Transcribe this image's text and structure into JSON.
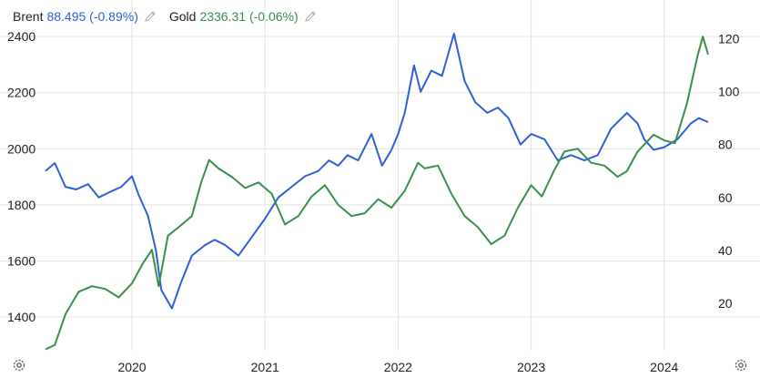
{
  "legend": [
    {
      "name": "Brent",
      "value": "88.495 (-0.89%)",
      "color": "#2f5fd8",
      "icon": "pencil-icon"
    },
    {
      "name": "Gold",
      "value": "2336.31 (-0.06%)",
      "color": "#3a8f4e",
      "icon": "pencil-icon"
    }
  ],
  "settings_icons": [
    "gear-icon",
    "gear-icon"
  ],
  "chart_data": {
    "type": "line",
    "grid": true,
    "x_ticks": [
      "2020",
      "2021",
      "2022",
      "2023",
      "2024"
    ],
    "x_range": [
      2019.35,
      2024.33
    ],
    "y_left": {
      "ticks": [
        1400,
        1600,
        1800,
        2000,
        2200,
        2400
      ],
      "range": [
        1280,
        2420
      ],
      "series": "Gold"
    },
    "y_right": {
      "ticks": [
        20,
        40,
        60,
        80,
        100,
        120
      ],
      "range": [
        2,
        123
      ],
      "series": "Brent"
    },
    "series": [
      {
        "name": "Brent",
        "axis": "right",
        "color": "#2f5fd8",
        "points": [
          [
            2019.35,
            70
          ],
          [
            2019.42,
            73
          ],
          [
            2019.5,
            64
          ],
          [
            2019.58,
            63
          ],
          [
            2019.67,
            65
          ],
          [
            2019.75,
            60
          ],
          [
            2019.83,
            62
          ],
          [
            2019.92,
            64
          ],
          [
            2020.0,
            68
          ],
          [
            2020.05,
            61
          ],
          [
            2020.12,
            53
          ],
          [
            2020.18,
            40
          ],
          [
            2020.22,
            25
          ],
          [
            2020.3,
            18
          ],
          [
            2020.37,
            28
          ],
          [
            2020.45,
            38
          ],
          [
            2020.55,
            42
          ],
          [
            2020.62,
            44
          ],
          [
            2020.7,
            42
          ],
          [
            2020.8,
            38
          ],
          [
            2020.9,
            45
          ],
          [
            2021.0,
            52
          ],
          [
            2021.1,
            60
          ],
          [
            2021.2,
            64
          ],
          [
            2021.3,
            68
          ],
          [
            2021.4,
            70
          ],
          [
            2021.48,
            74
          ],
          [
            2021.55,
            72
          ],
          [
            2021.62,
            76
          ],
          [
            2021.7,
            74
          ],
          [
            2021.8,
            84
          ],
          [
            2021.88,
            72
          ],
          [
            2021.95,
            78
          ],
          [
            2022.0,
            84
          ],
          [
            2022.05,
            92
          ],
          [
            2022.12,
            110
          ],
          [
            2022.17,
            100
          ],
          [
            2022.25,
            108
          ],
          [
            2022.33,
            106
          ],
          [
            2022.42,
            122
          ],
          [
            2022.5,
            104
          ],
          [
            2022.58,
            96
          ],
          [
            2022.67,
            92
          ],
          [
            2022.75,
            94
          ],
          [
            2022.83,
            90
          ],
          [
            2022.92,
            80
          ],
          [
            2023.0,
            84
          ],
          [
            2023.1,
            82
          ],
          [
            2023.2,
            74
          ],
          [
            2023.3,
            76
          ],
          [
            2023.4,
            74
          ],
          [
            2023.5,
            76
          ],
          [
            2023.6,
            86
          ],
          [
            2023.72,
            92
          ],
          [
            2023.8,
            88
          ],
          [
            2023.85,
            82
          ],
          [
            2023.92,
            78
          ],
          [
            2024.0,
            79
          ],
          [
            2024.1,
            82
          ],
          [
            2024.2,
            88
          ],
          [
            2024.26,
            90
          ],
          [
            2024.33,
            88.495
          ]
        ]
      },
      {
        "name": "Gold",
        "axis": "left",
        "color": "#3a8f4e",
        "points": [
          [
            2019.35,
            1285
          ],
          [
            2019.42,
            1300
          ],
          [
            2019.5,
            1410
          ],
          [
            2019.6,
            1490
          ],
          [
            2019.7,
            1510
          ],
          [
            2019.8,
            1500
          ],
          [
            2019.9,
            1470
          ],
          [
            2020.0,
            1520
          ],
          [
            2020.08,
            1590
          ],
          [
            2020.15,
            1640
          ],
          [
            2020.2,
            1510
          ],
          [
            2020.27,
            1690
          ],
          [
            2020.35,
            1720
          ],
          [
            2020.45,
            1760
          ],
          [
            2020.52,
            1880
          ],
          [
            2020.58,
            1960
          ],
          [
            2020.65,
            1930
          ],
          [
            2020.75,
            1900
          ],
          [
            2020.85,
            1860
          ],
          [
            2020.95,
            1880
          ],
          [
            2021.05,
            1840
          ],
          [
            2021.15,
            1730
          ],
          [
            2021.25,
            1760
          ],
          [
            2021.35,
            1830
          ],
          [
            2021.45,
            1870
          ],
          [
            2021.55,
            1800
          ],
          [
            2021.65,
            1760
          ],
          [
            2021.75,
            1770
          ],
          [
            2021.85,
            1820
          ],
          [
            2021.95,
            1790
          ],
          [
            2022.05,
            1850
          ],
          [
            2022.15,
            1950
          ],
          [
            2022.2,
            1930
          ],
          [
            2022.3,
            1940
          ],
          [
            2022.4,
            1840
          ],
          [
            2022.5,
            1760
          ],
          [
            2022.6,
            1720
          ],
          [
            2022.7,
            1660
          ],
          [
            2022.8,
            1690
          ],
          [
            2022.9,
            1790
          ],
          [
            2023.0,
            1870
          ],
          [
            2023.08,
            1830
          ],
          [
            2023.17,
            1920
          ],
          [
            2023.25,
            1990
          ],
          [
            2023.35,
            2000
          ],
          [
            2023.45,
            1950
          ],
          [
            2023.55,
            1940
          ],
          [
            2023.65,
            1900
          ],
          [
            2023.72,
            1920
          ],
          [
            2023.8,
            1990
          ],
          [
            2023.92,
            2050
          ],
          [
            2024.0,
            2030
          ],
          [
            2024.08,
            2020
          ],
          [
            2024.17,
            2160
          ],
          [
            2024.25,
            2330
          ],
          [
            2024.29,
            2400
          ],
          [
            2024.33,
            2336.31
          ]
        ]
      }
    ]
  }
}
